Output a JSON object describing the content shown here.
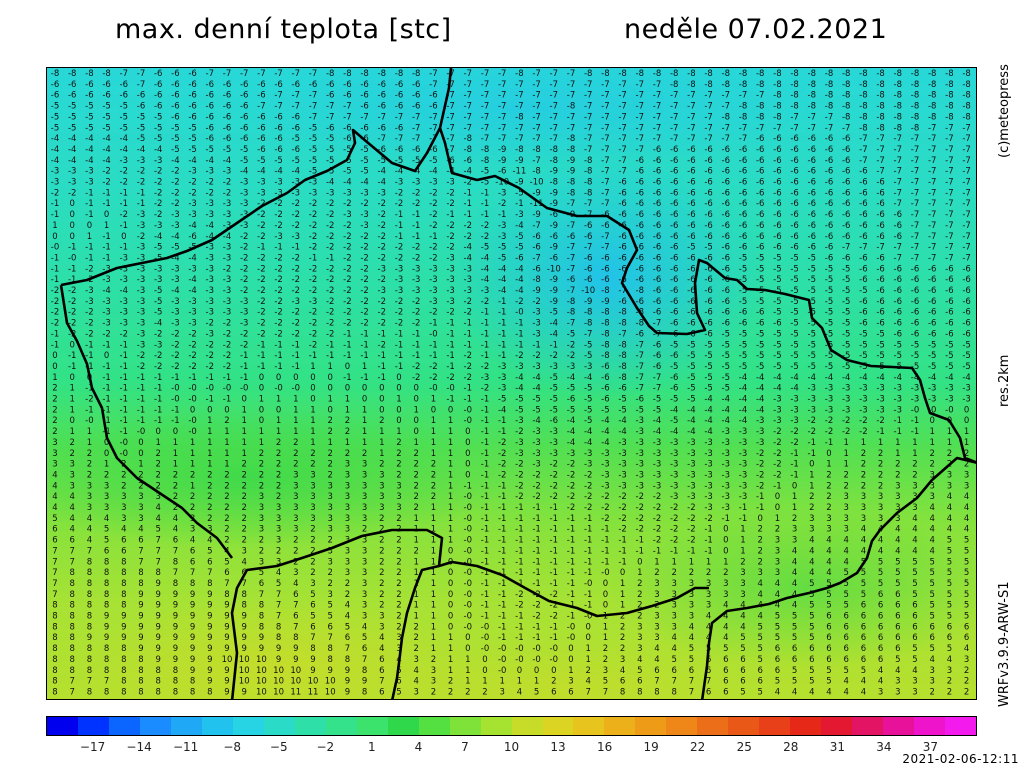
{
  "header": {
    "title_left": "max. denní teplota [stc]",
    "title_right": "neděle 07.02.2021"
  },
  "side_labels": {
    "copyright": "(c)meteopress",
    "resolution": "res.2km",
    "model": "WRFv3.9.9-ARW-S1"
  },
  "timestamp": "2021-02-06-12:11",
  "colorbar": {
    "tick_labels": [
      "−17",
      "−14",
      "−11",
      "−8",
      "−5",
      "−2",
      "1",
      "4",
      "7",
      "10",
      "13",
      "16",
      "19",
      "22",
      "25",
      "28",
      "31",
      "34",
      "37"
    ],
    "colors": [
      "#0000ee",
      "#0033ff",
      "#0a66ff",
      "#1a8cff",
      "#1fa8f5",
      "#22c2ee",
      "#26d4e4",
      "#2adcc8",
      "#2ee0a8",
      "#33e28a",
      "#3be26c",
      "#2ed84a",
      "#55e042",
      "#7fe238",
      "#a6e230",
      "#c6dc28",
      "#dcd422",
      "#e8c41e",
      "#ecb01a",
      "#ee9c18",
      "#ee8618",
      "#ec6e18",
      "#ea5818",
      "#e84018",
      "#e62818",
      "#e41830",
      "#e41464",
      "#e8129a",
      "#ee14cc",
      "#f21aec"
    ],
    "min": -20,
    "max": 40
  },
  "map": {
    "icons": [
      "country-border-icon"
    ],
    "rows": [
      "-8 -8 -8 -8 -7 -7 -6 -6 -6 -7 -7 -7 -7 -7 -7 -7 -8 -8 -8 -8 -8 -8 -7 -7 -7 -7 -7 -8 -7 -7 -7 -8 -8 -8 -8 -8 -8 -8 -8 -8 -8 -8 -8 -8 -8 -8 -8 -8 -8 -8 -8 -8 -8 -8",
      "-6 -6 -6 -6 -6 -7 -6 -6 -6 -6 -6 -6 -6 -6 -6 -6 -6 -6 -6 -6 -6 -6 -7 -7 -7 -7 -7 -7 -7 -7 -7 -7 -7 -7 -7 -7 -8 -8 -8 -8 -8 -8 -8 -8 -8 -8 -8 -8 -8 -8 -8 -8 -8 -8",
      "-6 -6 -6 -6 -6 -6 -6 -6 -6 -6 -6 -6 -6 -7 -7 -7 -6 -6 -6 -6 -6 -6 -6 -7 -7 -7 -7 -7 -7 -7 -7 -7 -7 -7 -7 -7 -7 -7 -7 -7 -7 -7 -8 -8 -8 -8 -8 -8 -8 -8 -8 -8 -8 -8",
      "-5 -5 -5 -5 -5 -6 -6 -6 -6 -6 -6 -6 -7 -7 -7 -7 -7 -7 -6 -6 -6 -6 -6 -7 -7 -7 -7 -7 -7 -7 -8 -7 -7 -7 -7 -7 -7 -7 -7 -7 -8 -8 -8 -8 -8 -8 -8 -8 -8 -8 -8 -8 -8 -8",
      "-5 -5 -5 -5 -5 -5 -5 -6 -6 -6 -6 -6 -6 -6 -6 -7 -7 -7 -7 -7 -7 -7 -7 -7 -7 -7 -7 -8 -7 -7 -7 -7 -7 -7 -7 -7 -7 -7 -7 -8 -8 -8 -8 -7 -7 -7 -8 -8 -8 -8 -8 -8 -8 -8",
      "-5 -5 -5 -5 -5 -5 -5 -5 -5 -6 -6 -6 -6 -6 -6 -5 -6 -6 -6 -6 -6 -7 -7 -7 -7 -7 -7 -7 -7 -7 -7 -7 -7 -7 -7 -7 -7 -7 -7 -7 -7 -7 -7 -7 -7 -7 -7 -8 -8 -8 -8 -7 -7 -7",
      "-4 -4 -4 -4 -4 -5 -5 -5 -5 -6 -6 -6 -6 -6 -5 -5 -5 -6 -6 -7 -7 -7 -7 -7 -8 -7 -7 -7 -7 -7 -8 -7 -7 -7 -7 -7 -7 -7 -7 -7 -7 -6 -6 -6 -6 -6 -6 -7 -7 -7 -7 -7 -7 -7",
      "-4 -4 -4 -4 -4 -4 -4 -5 -5 -5 -5 -5 -6 -6 -6 -5 -5 -5 -5 -6 -6 -6 -6 -7 -8 -8 -9 -8 -8 -8 -8 -7 -7 -7 -7 -6 -6 -6 -6 -6 -6 -6 -6 -6 -6 -6 -6 -7 -7 -7 -7 -7 -7 -7",
      "-4 -4 -4 -4 -3 -3 -3 -4 -4 -4 -4 -5 -5 -5 -5 -5 -5 -5 -5 -5 -5 -5 -5 -6 -6 -8 -9 -9 -7 -8 -9 -8 -7 -7 -6 -6 -6 -6 -6 -6 -6 -6 -6 -6 -6 -6 -6 -7 -7 -7 -7 -7 -7 -7",
      "-3 -3 -3 -2 -2 -2 -2 -2 -3 -3 -3 -4 -4 -4 -4 -5 -5 -5 -5 -4 -4 -4 -4 -4 -4 -5 -6 -11 -8 -9 -9 -8 -7 -7 -6 -6 -6 -6 -6 -6 -6 -6 -6 -6 -6 -6 -6 -6 -7 -7 -7 -7 -7 -7",
      "-3 -3 -3 -2 -2 -2 -2 -2 -2 -2 -2 -3 -3 -3 -3 -3 -4 -4 -4 -4 -3 -3 -3 -3 -2 -5 -10 -9 -10 -8 -8 -8 -7 -6 -6 -6 -6 -6 -6 -6 -6 -6 -6 -6 -6 -6 -6 -6 -6 -7 -7 -7 -7 -7",
      "-2 -2 -1 -1 -1 -1 -2 -2 -2 -2 -2 -3 -3 -3 -3 -3 -3 -3 -3 -3 -2 -2 -2 -2 -1 -1 -3 -5 -9 -9 -8 -8 -7 -6 -6 -6 -6 -6 -6 -6 -6 -6 -6 -6 -6 -6 -6 -6 -6 -7 -7 -7 -7 -7",
      "-1 0 -1 -1 -1 -1 -2 -2 -3 -3 -3 -3 -2 -2 -2 -2 -2 -2 -2 -2 -2 -2 -2 -2 -1 -1 -2 -1 -11 -9 -7 -7 -7 -6 -6 -6 -6 -6 -6 -6 -6 -6 -6 -6 -6 -6 -6 -6 -6 -7 -7 -7 -7 -7",
      "-1 0 -1 0 -2 -3 -2 -3 -3 -3 -3 -3 -2 -2 -2 -2 -2 -3 -3 -2 -1 -1 -2 -1 -1 -1 -1 -3 -9 -6 -9 -7 -6 -6 -6 -6 -6 -6 -6 -6 -6 -6 -6 -6 -6 -6 -6 -6 -6 -6 -7 -7 -7 -7",
      "1 0 0 1 -1 -3 -3 -3 -4 -4 -3 -3 -2 -2 -2 -2 -2 -2 -3 -2 -1 -1 -2 -2 -2 -2 -3 -4 -7 -9 -7 -6 -6 -6 -6 -6 -6 -6 -6 -6 -6 -6 -6 -6 -6 -6 -6 -6 -6 -6 -7 -7 -7 -7",
      "0 0 1 -1 0 -2 -4 -4 -6 -4 -4 -2 -2 -3 -3 -2 -2 -2 -2 -2 -1 -1 -1 -2 -2 -2 -3 -5 -6 -6 -6 -6 -7 -6 -6 -6 -6 -6 -6 -6 -6 -6 -6 -6 -6 -6 -6 -6 -6 -6 -7 -7 -7 -7",
      "-0 -1 -1 -1 -1 -3 -5 -5 -5 -3 -3 -2 -1 -1 -1 -2 -2 -2 -2 -2 -2 -2 -2 -2 -4 -5 -5 -5 -6 -9 -7 -7 -7 -6 -6 -6 -6 -5 -5 -6 -6 -6 -6 -6 -6 -6 -7 -7 -7 -7 -7 -7 -7 -7",
      "-1 -0 -1 -1 -3 -3 -5 -4 -4 -3 -3 -2 -2 -2 -2 -1 -1 -2 -2 -2 -2 -2 -2 -3 -4 -4 -5 -6 -7 -6 -7 -6 -6 -6 -6 -6 -6 -6 -6 -6 -5 -5 -5 -5 -5 -6 -6 -6 -6 -7 -7 -7 -7 -7",
      "-1 -1 -2 -3 -3 -3 -3 -3 -3 -3 -2 -2 -2 -2 -2 -2 -2 -2 -2 -3 -3 -3 -3 -3 -3 -4 -4 -4 -6 -10 -7 -6 -6 -6 -6 -6 -6 -6 -6 -6 -5 -5 -5 -5 -5 -5 -5 -6 -6 -6 -6 -6 -6 -6",
      "-1 -1 -2 -3 -3 -3 -3 -3 -4 -3 -3 -2 -2 -2 -2 -2 -2 -2 -2 -2 -3 -3 -3 -3 -3 -4 -4 -4 -8 -9 -6 -6 -6 -6 -6 -6 -6 -6 -6 -6 -5 -5 -5 -5 -5 -5 -5 -6 -6 -6 -6 -6 -6 -6",
      "-2 -2 -3 -4 -4 -3 -5 -4 -4 -3 -3 -2 -2 -2 -2 -2 -2 -2 -2 -3 -3 -3 -3 -3 -3 -3 -4 -4 -9 -9 -7 -10 -8 -7 -8 -6 -6 -6 -6 -6 -5 -5 -5 -5 -5 -5 -5 -5 -6 -6 -6 -6 -6 -6",
      "-2 -2 -3 -3 -3 -3 -5 -3 -3 -3 -3 -3 -2 -2 -3 -3 -2 -2 -2 -2 -2 -2 -3 -3 -2 -2 -1 -2 -2 -9 -8 -9 -9 -6 -6 -6 -6 -6 -6 -6 -5 -5 -5 -5 -5 -5 -5 -6 -6 -6 -6 -6 -6 -6",
      "-2 -2 -2 -3 -3 -3 -5 -3 -3 -3 -3 -3 -2 -2 -2 -2 -2 -2 -2 -2 -2 -2 -2 -2 -2 -1 -1 -0 -3 -5 -8 -8 -8 -8 -8 -6 -6 -6 -6 -6 -6 -6 -5 -5 -5 -5 -5 -6 -6 -6 -6 -6 -6 -6",
      "-2 -2 -2 -3 -3 -3 -4 -3 -3 -2 -2 -3 -2 -2 -2 -2 -2 -2 -2 -2 -2 -2 -1 -1 -1 -1 -1 -1 -3 -4 -7 -8 -8 -8 -8 -7 -6 -6 -6 -6 -6 -6 -6 -5 -5 -5 -5 -6 -6 -6 -6 -6 -6 -6",
      "-1 -2 -2 -2 -2 -3 -2 -2 -2 -3 -2 -2 -2 -2 -2 -2 -2 -1 -1 -1 -1 -1 -0 -1 -1 -1 -1 -1 -3 -4 -5 -7 -8 -7 -6 -7 -6 -6 -6 -5 -5 -5 -5 -5 -5 -5 -5 -5 -5 -6 -6 -6 -6 -6",
      "-1 0 -1 -1 -1 -3 -3 -2 -2 -2 -2 -2 -1 -1 -1 -2 -1 -1 -1 -2 -1 -1 -1 -1 -1 -1 -1 -1 -1 -1 -2 -5 -8 -8 -7 -6 -5 -5 -5 -5 -5 -5 -5 -5 -5 -5 -5 -5 -5 -5 -5 -5 -5 -5",
      "0 -1 -1 0 -1 -2 -2 -2 -2 -2 -2 -1 -1 -1 -1 -1 -1 -1 -1 -1 -1 -1 -1 -1 -2 -1 -1 -2 -2 -2 -2 -5 -8 -8 -7 -6 -6 -5 -5 -5 -5 -5 -5 -5 -5 -5 -5 -5 -5 -5 -5 -5 -5 -5",
      "0 -1 -1 -1 -1 -2 -2 -2 -2 -2 -2 -1 -1 -1 -1 1 1 0 1 -1 -1 -2 -2 -1 -2 -2 -3 -3 -3 -3 -3 -3 -6 -8 -7 -6 -5 -5 -5 -5 -5 -5 -5 -5 -5 -5 -5 -5 -5 -5 -5 -5 -5 -5",
      "1 0 0 -1 -1 -1 -1 -1 -1 -1 -1 -1 0 0 0 0 0 -1 -1 -1 0 -2 -2 -2 -2 -3 -3 -4 -4 -5 -4 -4 -6 -8 -7 -7 -6 -5 -5 -5 -4 -4 -4 -4 -4 -4 -4 -4 -4 -4 -4 -4 -4 -4",
      "2 1 -1 -1 -1 -1 -1 -0 -0 -0 -0 -0 0 -0 -0 0 0 0 0 0 0 0 -0 -0 -1 -2 -3 -4 -4 -5 -5 -5 -6 -6 -7 -7 -6 -5 -5 -5 -4 -4 -4 -4 -3 -3 -3 -3 -3 -3 -3 -3 -3 -3",
      "2 1 -2 -1 -1 -1 -1 -0 -0 -1 -1 0 1 1 1 0 1 1 0 0 1 0 1 -1 -1 -1 -5 -5 -5 -5 -6 -5 -6 -5 -6 -5 -5 -5 -4 -4 -4 -4 -3 -3 -3 -3 -3 -3 -3 -3 -3 -3 -3 -3",
      "2 1 -1 -1 -1 -1 -1 -1 0 0 0 1 0 0 1 1 0 1 1 0 0 1 0 0 -0 -1 -4 -5 -5 -5 -5 -5 -5 -5 -5 -5 -4 -4 -4 -4 -4 -4 -3 -3 -3 -3 -3 -3 -3 -3 -0 -0 -0 0",
      "2 0 -0 -1 -1 -1 -1 -1 -0 1 2 1 0 1 1 1 2 2 1 2 0 0 1 1 -0 -1 -1 -3 -4 -6 -4 -5 -4 -4 -3 -4 -5 -4 -4 -4 -4 -3 -3 -3 -2 -2 -2 -2 -2 -1 -1 0 0 0",
      "2 1 1 -1 -1 -0 0 0 -0 1 1 1 1 1 1 1 2 2 1 1 1 0 1 1 0 -1 -1 -2 -3 -3 -4 -4 -4 -4 -3 -4 -4 -4 -4 -3 -3 -3 -2 -2 -2 -2 -2 -2 -1 -1 -1 1 1 1",
      "3 2 1 0 -0 0 1 1 1 1 1 1 1 2 2 1 1 1 1 1 2 1 1 1 0 -1 -2 -3 -3 -3 -4 -4 -4 -3 -3 -3 -3 -3 -3 -3 -3 -3 -2 -2 -1 -1 1 1 1 1 1 1 1 1",
      "3 2 2 0 -0 0 2 1 1 1 1 1 2 2 2 2 2 2 2 1 2 2 1 1 0 -1 -2 -3 -3 -3 -3 -3 -3 -3 -3 -3 -3 -3 -3 -3 -3 -2 -2 -1 -1 0 1 2 2 1 1 2 2 2",
      "3 3 2 1 2 1 2 1 1 1 1 2 2 2 2 2 2 3 3 2 2 2 2 1 0 -1 -2 -2 -3 -2 -2 -3 -3 -3 -3 -3 -3 -3 -3 -3 -3 -2 -2 -1 0 1 1 2 2 2 2 2 2 2",
      "4 3 2 2 2 2 2 2 2 2 2 2 2 2 3 3 2 3 3 3 2 2 2 1 0 -1 -2 -2 -2 -2 -2 -2 -3 -3 -3 -3 -3 -3 -3 -3 -3 -2 -2 -1 1 2 2 2 2 2 2 3 3 3",
      "4 3 3 3 2 2 2 2 1 2 2 2 2 2 3 3 3 3 3 3 3 2 2 1 -1 -1 -1 -2 -2 -2 -2 -2 -3 -3 -3 -3 -3 -3 -3 -3 -3 -2 -1 0 1 2 2 2 2 3 3 3 3 3",
      "4 4 3 3 3 3 3 2 2 2 2 2 3 2 3 3 3 3 3 3 3 2 2 1 -0 -1 -1 -2 -2 -2 -2 -2 -2 -2 -2 -2 -3 -3 -3 -3 -3 -1 0 1 2 2 3 3 3 3 3 3 4 4",
      "4 4 3 3 3 3 4 2 2 2 2 2 3 3 3 3 3 3 3 3 3 2 1 1 -0 -1 -1 -1 -1 -1 -2 -2 -2 -2 -2 -2 -2 -2 -3 -3 -1 -1 0 1 2 2 3 3 3 3 3 4 4 4",
      "5 4 4 4 3 3 4 4 3 2 2 2 3 3 3 3 3 3 3 2 2 1 1 1 -0 -1 -1 -1 -1 -1 -1 -1 -2 -2 -2 -2 -2 -2 -2 -1 -1 0 1 2 3 3 3 3 3 3 4 4 4 4",
      "6 4 4 5 4 4 5 4 3 3 2 2 3 3 3 2 3 3 2 2 2 1 1 1 -0 -1 -1 -1 -1 -1 -1 -1 -1 -2 -2 -2 -2 -2 -1 0 1 2 2 3 3 3 3 4 4 4 4 4 4 4",
      "6 6 4 5 6 6 7 6 4 4 2 2 2 3 2 2 2 3 3 2 2 1 1 1 -0 -1 -1 -1 -1 -1 -1 -1 -1 -1 -1 -2 -2 -2 -1 0 1 2 3 3 4 4 4 4 4 4 4 4 5 5",
      "7 7 7 6 6 7 7 7 6 5 4 3 2 2 2 2 3 3 3 2 2 2 1 0 -0 -1 -1 -1 -1 -1 -1 -1 -1 -1 -1 -1 -1 -1 -1 0 1 2 3 4 4 4 4 4 4 4 4 4 5 5",
      "7 7 8 8 8 7 7 8 6 6 5 4 3 3 2 2 3 3 3 2 2 1 1 0 -0 -1 -1 -1 -1 -1 -1 -1 -1 -1 0 1 1 1 1 1 2 2 3 4 4 4 4 5 5 5 5 5 5 5",
      "7 8 8 8 8 8 8 7 7 7 6 6 5 4 3 2 2 3 3 2 2 1 1 0 -0 -1 -1 -1 -1 -1 -1 -1 -0 0 1 2 2 2 2 2 3 3 3 4 4 4 5 5 5 5 5 5 5 5",
      "7 8 8 8 8 8 9 8 8 8 7 7 6 5 4 3 2 2 3 2 2 1 1 0 -0 -1 -1 -1 -1 -1 -1 -0 0 1 2 3 3 3 3 3 3 4 4 4 5 5 5 5 5 5 5 5 5 5",
      "7 8 8 8 8 9 9 9 9 9 8 8 7 7 6 5 3 2 3 2 2 1 1 0 -0 -1 -1 -2 -2 -2 -1 -1 0 1 2 3 3 3 3 3 3 4 4 4 5 5 5 5 6 6 5 5 5 5",
      "8 8 8 8 8 9 9 9 9 9 9 8 8 7 7 6 5 4 3 2 2 1 1 0 -0 -1 -1 -2 -2 -2 -1 -1 0 1 2 2 3 3 3 4 4 4 4 4 5 5 5 6 6 6 6 5 5 5",
      "8 8 8 9 9 9 9 9 9 9 9 9 8 7 6 5 5 4 3 3 2 1 1 0 -0 -1 -1 -1 -2 -2 -1 -0 1 2 2 3 3 3 4 4 4 4 5 5 5 6 6 6 6 6 6 5 5 5",
      "8 8 8 9 9 9 9 9 9 9 9 9 8 8 7 6 6 5 4 3 2 2 1 0 -0 -0 -1 -1 -1 -1 -0 0 1 2 3 3 3 4 4 4 4 5 5 5 5 6 6 6 6 6 6 6 6 6",
      "8 8 9 9 9 9 9 9 9 9 9 9 9 8 8 7 7 6 5 4 3 2 1 1 0 -0 -1 -1 -1 -1 -0 0 1 2 3 3 4 4 4 4 5 5 5 5 5 6 6 6 6 6 6 6 6 6",
      "8 8 8 8 8 9 9 9 9 9 9 9 9 9 9 8 8 7 6 4 3 2 1 1 0 -0 -0 -0 -0 -0 0 1 2 2 3 4 4 5 5 5 5 5 6 6 6 6 6 6 6 6 5 5 5 4",
      "8 8 8 8 8 8 9 9 9 9 10 10 10 9 9 9 8 8 7 6 4 3 2 1 1 0 -0 -0 -0 -0 0 1 2 3 4 4 5 5 6 6 6 5 6 6 6 6 6 6 6 5 5 4 4 3",
      "8 8 8 8 8 8 8 8 9 9 9 10 10 10 10 9 9 9 8 6 5 4 3 1 1 0 -0 0 0 0 1 2 3 4 5 6 6 6 6 6 6 6 6 5 5 5 5 5 4 4 4 3 3 2",
      "8 7 7 7 8 8 8 8 8 9 9 10 10 10 10 10 10 9 9 7 6 4 3 2 1 1 1 1 1 2 3 4 5 6 6 7 7 7 7 6 6 6 5 5 5 5 4 4 4 3 3 3 2 2",
      "8 7 8 8 8 8 8 8 8 8 9 9 10 10 11 11 10 9 8 6 5 3 2 2 2 2 3 4 5 6 6 7 7 8 8 8 8 7 6 6 5 5 4 4 4 4 4 4 3 3 3 2 2 2",
      "8 7 8 8 8 7 7 8 7 8 8 8 9 10 10 11 11 10 9 9 5 3 3 2 2 4 6 6 9 9 8 9 8 8 8 7 6 5 4 4 4 4 4 4 4 3 3 3 3 3 3 2 2 2"
    ]
  }
}
